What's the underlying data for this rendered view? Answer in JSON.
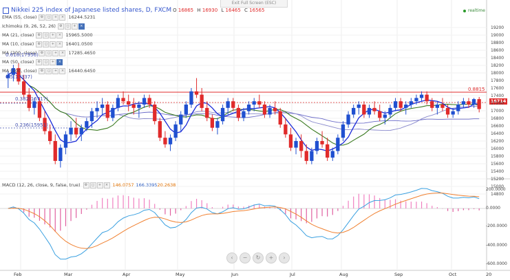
{
  "header": {
    "exit_fullscreen": "Exit Full Screen (ESC)",
    "title": "Nikkei 225 index of Japanese listed shares, D, FXCM",
    "ohlc": [
      {
        "label": "O",
        "value": "16865"
      },
      {
        "label": "H",
        "value": "16930"
      },
      {
        "label": "L",
        "value": "16465"
      },
      {
        "label": "C",
        "value": "16565"
      }
    ],
    "realtime": "realtime"
  },
  "indicators": [
    {
      "name": "EMA (55, close)",
      "value": "16244.5231"
    },
    {
      "name": "Ichimoku (9, 26, 52, 26)",
      "value": ""
    },
    {
      "name": "MA (21, close)",
      "value": "15965.5000"
    },
    {
      "name": "MA (10, close)",
      "value": "16401.0500"
    },
    {
      "name": "MA (200, close)",
      "value": "17285.4650"
    },
    {
      "name": "MA (50, close)",
      "value": ""
    },
    {
      "name": "MA (100, close)",
      "value": "16440.6450"
    }
  ],
  "fib_labels": [
    "0.618(17956)",
    "0.5(17337)",
    "0.382(16717)",
    "0.236(15951)"
  ],
  "last_price_tag": "16714",
  "level_label": "0.8815",
  "macd": {
    "name": "MACD (12, 26, close, 9, false, true)",
    "v1": "146.0757",
    "v2": "166.3395",
    "v3": "20.2638"
  },
  "y_axis_main": [
    "19200",
    "19000",
    "18800",
    "18600",
    "18400",
    "18200",
    "18000",
    "17800",
    "17600",
    "17400",
    "17200",
    "17000",
    "16800",
    "16600",
    "16400",
    "16200",
    "16000",
    "15800",
    "15600",
    "15400",
    "15200",
    "15000",
    "14800"
  ],
  "y_axis_macd": [
    "200.0000",
    "0.0000",
    "-200.0000",
    "-400.0000",
    "-600.0000"
  ],
  "x_axis": [
    "Feb",
    "Mar",
    "Apr",
    "May",
    "Jun",
    "Jul",
    "Aug",
    "Sep",
    "Oct",
    "20"
  ],
  "colors": {
    "up": "#2050d0",
    "down": "#e02b2b",
    "accent": "#3355cc",
    "macd_line": "#3aa0e0",
    "signal_line": "#f08030",
    "hist_up": "#f080c0",
    "hist_down": "#e060a0"
  },
  "chart_data": {
    "type": "candlestick",
    "y_range": [
      14500,
      19400
    ],
    "candles": [
      [
        17500,
        17700,
        17200,
        17600
      ],
      [
        17600,
        17900,
        17400,
        17800
      ],
      [
        17800,
        17950,
        17300,
        17400
      ],
      [
        17400,
        17600,
        16900,
        17000
      ],
      [
        17000,
        17200,
        16500,
        16600
      ],
      [
        16600,
        16900,
        16400,
        16800
      ],
      [
        16800,
        16900,
        16200,
        16300
      ],
      [
        16300,
        16500,
        15800,
        15900
      ],
      [
        15900,
        16100,
        15500,
        15600
      ],
      [
        15600,
        15800,
        14900,
        15000
      ],
      [
        15000,
        15500,
        14800,
        15400
      ],
      [
        15400,
        15900,
        15200,
        15800
      ],
      [
        15800,
        16200,
        15600,
        16000
      ],
      [
        16000,
        16300,
        15700,
        15800
      ],
      [
        15800,
        16100,
        15600,
        16000
      ],
      [
        16000,
        16300,
        15900,
        16200
      ],
      [
        16200,
        16600,
        16000,
        16500
      ],
      [
        16500,
        16800,
        16300,
        16600
      ],
      [
        16600,
        16900,
        16400,
        16700
      ],
      [
        16700,
        16800,
        16200,
        16300
      ],
      [
        16300,
        16700,
        16200,
        16600
      ],
      [
        16600,
        17000,
        16500,
        16900
      ],
      [
        16900,
        17100,
        16700,
        16800
      ],
      [
        16800,
        17000,
        16500,
        16700
      ],
      [
        16700,
        16900,
        16400,
        16600
      ],
      [
        16600,
        16800,
        16300,
        16700
      ],
      [
        16700,
        17000,
        16600,
        16900
      ],
      [
        16900,
        17000,
        16600,
        16700
      ],
      [
        16700,
        16800,
        16100,
        16200
      ],
      [
        16200,
        16300,
        15600,
        15700
      ],
      [
        15700,
        15900,
        15400,
        15500
      ],
      [
        15500,
        15800,
        15300,
        15700
      ],
      [
        15700,
        16200,
        15600,
        16100
      ],
      [
        16100,
        16500,
        15900,
        16400
      ],
      [
        16400,
        16800,
        16300,
        16700
      ],
      [
        16700,
        17200,
        16600,
        17100
      ],
      [
        17100,
        17500,
        16900,
        17000
      ],
      [
        17000,
        17200,
        16500,
        16600
      ],
      [
        16600,
        16800,
        16200,
        16300
      ],
      [
        16300,
        16400,
        15900,
        16000
      ],
      [
        16000,
        16300,
        15800,
        16200
      ],
      [
        16200,
        16700,
        16100,
        16600
      ],
      [
        16600,
        16900,
        16400,
        16800
      ],
      [
        16800,
        16900,
        16500,
        16600
      ],
      [
        16600,
        16700,
        16200,
        16300
      ],
      [
        16300,
        16600,
        16200,
        16500
      ],
      [
        16500,
        16800,
        16400,
        16700
      ],
      [
        16700,
        16900,
        16500,
        16800
      ],
      [
        16800,
        17000,
        16600,
        16700
      ],
      [
        16700,
        16800,
        16300,
        16400
      ],
      [
        16400,
        16700,
        16300,
        16600
      ],
      [
        16600,
        16800,
        16400,
        16500
      ],
      [
        16500,
        16600,
        16000,
        16100
      ],
      [
        16100,
        16300,
        15700,
        15800
      ],
      [
        15800,
        16000,
        15300,
        15400
      ],
      [
        15400,
        15700,
        15200,
        15600
      ],
      [
        15600,
        15800,
        15100,
        15300
      ],
      [
        15300,
        15500,
        14900,
        15000
      ],
      [
        15000,
        15400,
        14900,
        15300
      ],
      [
        15300,
        15700,
        15200,
        15600
      ],
      [
        15600,
        15900,
        15400,
        15500
      ],
      [
        15500,
        15700,
        15000,
        15100
      ],
      [
        15100,
        15400,
        15000,
        15300
      ],
      [
        15300,
        15800,
        15200,
        15700
      ],
      [
        15700,
        16200,
        15600,
        16100
      ],
      [
        16100,
        16500,
        16000,
        16400
      ],
      [
        16400,
        16700,
        16300,
        16600
      ],
      [
        16600,
        16800,
        16400,
        16700
      ],
      [
        16700,
        16800,
        16300,
        16400
      ],
      [
        16400,
        16700,
        16300,
        16600
      ],
      [
        16600,
        16800,
        16400,
        16500
      ],
      [
        16500,
        16700,
        16200,
        16300
      ],
      [
        16300,
        16500,
        16100,
        16400
      ],
      [
        16400,
        16700,
        16300,
        16600
      ],
      [
        16600,
        16900,
        16500,
        16800
      ],
      [
        16800,
        16900,
        16500,
        16600
      ],
      [
        16600,
        16800,
        16400,
        16700
      ],
      [
        16700,
        16900,
        16600,
        16800
      ],
      [
        16800,
        17000,
        16700,
        16900
      ],
      [
        16900,
        17100,
        16800,
        17000
      ],
      [
        17000,
        17100,
        16700,
        16800
      ],
      [
        16800,
        16900,
        16500,
        16600
      ],
      [
        16600,
        16800,
        16400,
        16700
      ],
      [
        16700,
        16900,
        16500,
        16600
      ],
      [
        16600,
        16700,
        16300,
        16400
      ],
      [
        16400,
        16600,
        16300,
        16500
      ],
      [
        16500,
        16800,
        16400,
        16700
      ],
      [
        16700,
        16900,
        16600,
        16800
      ],
      [
        16800,
        16900,
        16600,
        16700
      ],
      [
        16700,
        16900,
        16600,
        16865
      ],
      [
        16865,
        16930,
        16465,
        16565
      ]
    ]
  }
}
